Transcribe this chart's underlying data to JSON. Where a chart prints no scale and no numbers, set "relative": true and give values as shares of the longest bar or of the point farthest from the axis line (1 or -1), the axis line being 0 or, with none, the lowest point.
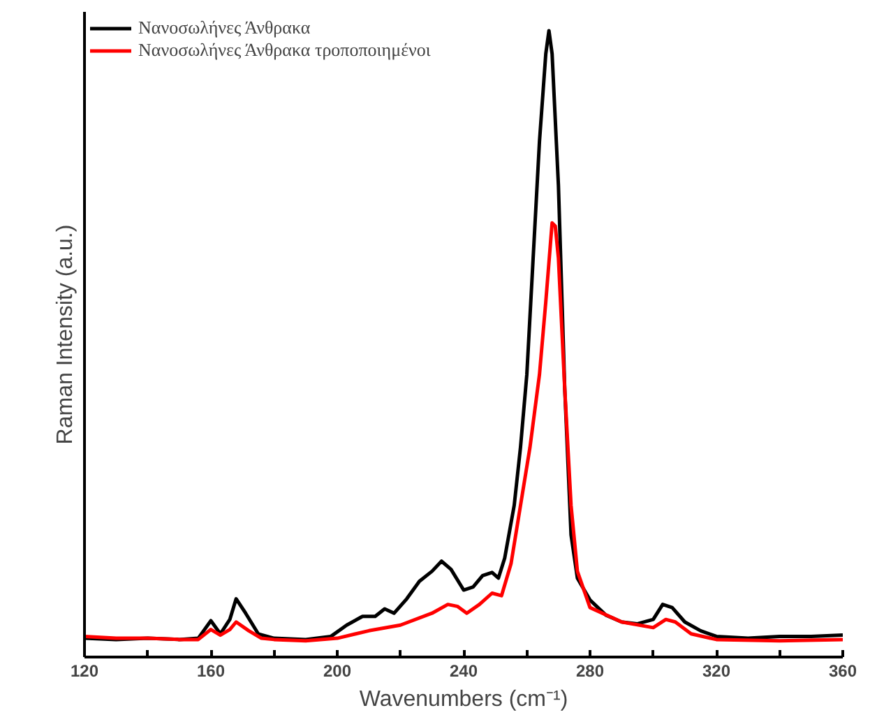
{
  "chart_data": {
    "type": "line",
    "relative": true,
    "xlabel": "Wavenumbers (cm⁻¹)",
    "ylabel": "Raman Intensity (a.u.)",
    "legend": "top left",
    "grid": false,
    "xlim": [
      120,
      360
    ],
    "xticks": [
      120,
      {
        "value": 140,
        "label": null
      },
      160,
      {
        "value": 180,
        "label": null
      },
      200,
      {
        "value": 220,
        "label": null
      },
      240,
      {
        "value": 260,
        "label": null
      },
      280,
      {
        "value": 300,
        "label": null
      },
      320,
      {
        "value": 340,
        "label": null
      },
      360
    ],
    "series": [
      {
        "name": "Νανοσωλήνες Άνθρακα",
        "color": "#000000",
        "x": [
          120,
          130,
          140,
          150,
          156,
          160,
          163,
          166,
          168,
          171,
          175,
          180,
          190,
          198,
          203,
          208,
          212,
          215,
          218,
          222,
          226,
          230,
          233,
          236,
          240,
          243,
          246,
          249,
          251,
          253,
          256,
          258,
          260,
          262,
          264,
          266,
          267,
          268,
          270,
          272,
          274,
          276,
          280,
          285,
          290,
          295,
          300,
          303,
          306,
          310,
          315,
          320,
          330,
          340,
          350,
          360
        ],
        "values": [
          0.03,
          0.028,
          0.03,
          0.028,
          0.03,
          0.058,
          0.037,
          0.06,
          0.093,
          0.07,
          0.037,
          0.03,
          0.028,
          0.033,
          0.051,
          0.065,
          0.065,
          0.077,
          0.07,
          0.093,
          0.121,
          0.137,
          0.153,
          0.14,
          0.107,
          0.112,
          0.13,
          0.135,
          0.126,
          0.158,
          0.242,
          0.335,
          0.451,
          0.637,
          0.823,
          0.963,
          1,
          0.963,
          0.753,
          0.428,
          0.195,
          0.126,
          0.091,
          0.067,
          0.056,
          0.053,
          0.06,
          0.084,
          0.079,
          0.056,
          0.042,
          0.033,
          0.03,
          0.033,
          0.033,
          0.035
        ]
      },
      {
        "name": "Νανοσωλήνες Άνθρακα τροποποιημένοι",
        "color": "#ff0000",
        "x": [
          120,
          130,
          140,
          150,
          156,
          160,
          163,
          166,
          168,
          172,
          176,
          180,
          190,
          200,
          210,
          220,
          230,
          235,
          238,
          241,
          245,
          249,
          252,
          255,
          258,
          261,
          264,
          266,
          268,
          269,
          270,
          272,
          274,
          276,
          280,
          290,
          300,
          304,
          307,
          312,
          320,
          340,
          360
        ],
        "values": [
          0.033,
          0.03,
          0.03,
          0.028,
          0.028,
          0.044,
          0.035,
          0.044,
          0.056,
          0.042,
          0.03,
          0.028,
          0.026,
          0.03,
          0.042,
          0.051,
          0.07,
          0.084,
          0.081,
          0.07,
          0.084,
          0.102,
          0.098,
          0.149,
          0.242,
          0.335,
          0.451,
          0.567,
          0.693,
          0.688,
          0.637,
          0.428,
          0.242,
          0.137,
          0.079,
          0.056,
          0.047,
          0.06,
          0.056,
          0.037,
          0.028,
          0.026,
          0.028
        ]
      }
    ]
  }
}
